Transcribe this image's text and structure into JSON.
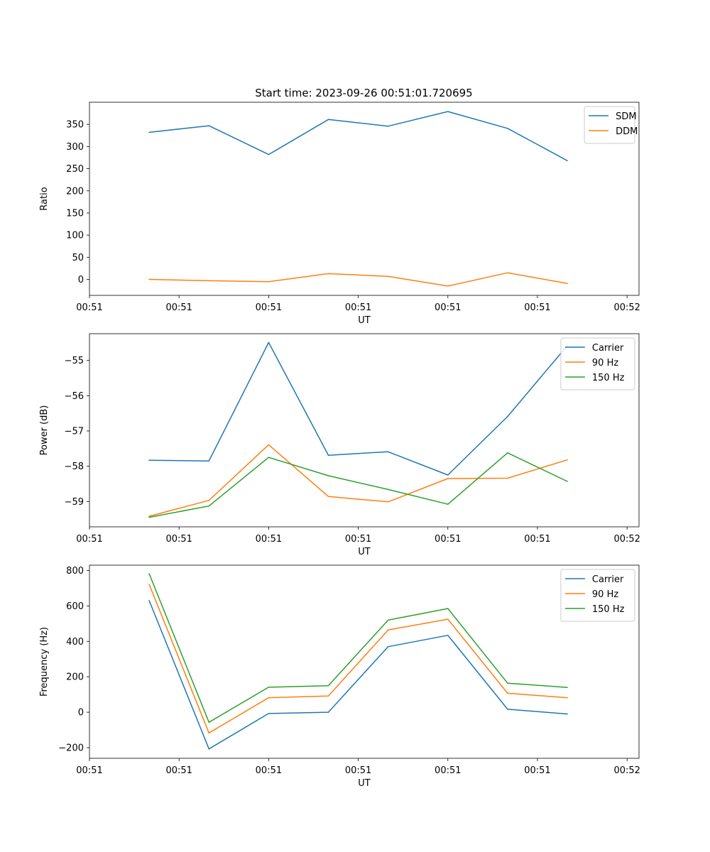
{
  "figure_title": "Start time: 2023-09-26 00:51:01.720695",
  "chart_data": [
    {
      "type": "line",
      "title": "Start time: 2023-09-26 00:51:01.720695",
      "xlabel": "UT",
      "ylabel": "Ratio",
      "x": [
        1,
        2,
        3,
        4,
        5,
        6,
        7,
        8
      ],
      "xlim": [
        0,
        9.2
      ],
      "xticks": [
        0,
        1.5,
        3,
        4.5,
        6,
        7.5,
        9
      ],
      "xtick_labels": [
        "00:51",
        "00:51",
        "00:51",
        "00:51",
        "00:51",
        "00:51",
        "00:52"
      ],
      "ylim": [
        -36,
        400
      ],
      "yticks": [
        0,
        50,
        100,
        150,
        200,
        250,
        300,
        350
      ],
      "ytick_labels": [
        "0",
        "50",
        "100",
        "150",
        "200",
        "250",
        "300",
        "350"
      ],
      "legend_position": "top-right",
      "grid": false,
      "series": [
        {
          "name": "SDM",
          "color": "#1f77b4",
          "values": [
            332,
            347,
            282,
            361,
            346,
            379,
            341,
            268
          ]
        },
        {
          "name": "DDM",
          "color": "#ff7f0e",
          "values": [
            0,
            -3,
            -5,
            13,
            7,
            -15,
            15,
            -9
          ]
        }
      ]
    },
    {
      "type": "line",
      "xlabel": "UT",
      "ylabel": "Power (dB)",
      "x": [
        1,
        2,
        3,
        4,
        5,
        6,
        7,
        8
      ],
      "xlim": [
        0,
        9.2
      ],
      "xticks": [
        0,
        1.5,
        3,
        4.5,
        6,
        7.5,
        9
      ],
      "xtick_labels": [
        "00:51",
        "00:51",
        "00:51",
        "00:51",
        "00:51",
        "00:51",
        "00:52"
      ],
      "ylim": [
        -59.72,
        -54.24
      ],
      "yticks": [
        -59,
        -58,
        -57,
        -56,
        -55
      ],
      "ytick_labels": [
        "−59",
        "−58",
        "−57",
        "−56",
        "−55"
      ],
      "legend_position": "top-right",
      "grid": false,
      "series": [
        {
          "name": "Carrier",
          "color": "#1f77b4",
          "values": [
            -57.83,
            -57.85,
            -54.49,
            -57.69,
            -57.59,
            -58.25,
            -56.59,
            -54.58
          ]
        },
        {
          "name": "90 Hz",
          "color": "#ff7f0e",
          "values": [
            -59.42,
            -58.97,
            -57.39,
            -58.86,
            -59.01,
            -58.35,
            -58.34,
            -57.82
          ]
        },
        {
          "name": "150 Hz",
          "color": "#2ca02c",
          "values": [
            -59.45,
            -59.13,
            -57.75,
            -58.27,
            -58.66,
            -59.08,
            -57.62,
            -58.43
          ]
        }
      ]
    },
    {
      "type": "line",
      "xlabel": "UT",
      "ylabel": "Frequency (Hz)",
      "x": [
        1,
        2,
        3,
        4,
        5,
        6,
        7,
        8
      ],
      "xlim": [
        0,
        9.2
      ],
      "xticks": [
        0,
        1.5,
        3,
        4.5,
        6,
        7.5,
        9
      ],
      "xtick_labels": [
        "00:51",
        "00:51",
        "00:51",
        "00:51",
        "00:51",
        "00:51",
        "00:52"
      ],
      "ylim": [
        -260,
        830
      ],
      "yticks": [
        -200,
        0,
        200,
        400,
        600,
        800
      ],
      "ytick_labels": [
        "−200",
        "0",
        "200",
        "400",
        "600",
        "800"
      ],
      "legend_position": "top-right",
      "grid": false,
      "series": [
        {
          "name": "Carrier",
          "color": "#1f77b4",
          "values": [
            630,
            -207,
            -7,
            0,
            370,
            434,
            17,
            -10
          ]
        },
        {
          "name": "90 Hz",
          "color": "#ff7f0e",
          "values": [
            722,
            -117,
            82,
            92,
            464,
            525,
            107,
            82
          ]
        },
        {
          "name": "150 Hz",
          "color": "#2ca02c",
          "values": [
            782,
            -57,
            141,
            150,
            520,
            585,
            164,
            140
          ]
        }
      ]
    }
  ]
}
